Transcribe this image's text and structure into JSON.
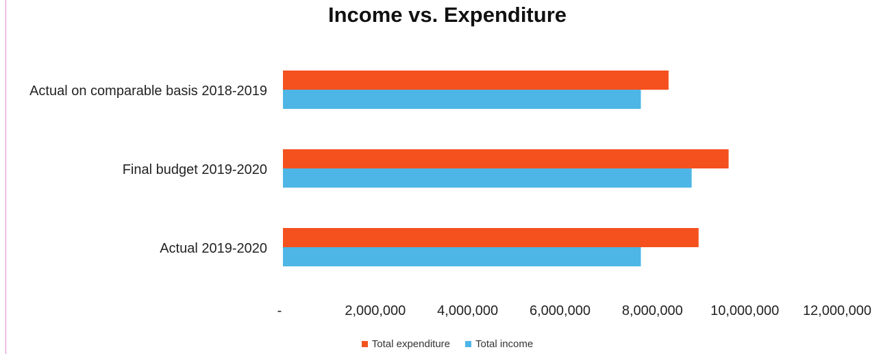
{
  "chart_data": {
    "type": "bar",
    "orientation": "horizontal",
    "title": "Income vs. Expenditure",
    "categories": [
      "Actual on comparable basis 2018-2019",
      "Final budget 2019-2020",
      "Actual 2019-2020"
    ],
    "series": [
      {
        "name": "Total expenditure",
        "color": "#f4511e",
        "values": [
          8350000,
          9650000,
          9000000
        ]
      },
      {
        "name": "Total income",
        "color": "#4db6e6",
        "values": [
          7750000,
          8850000,
          7750000
        ]
      }
    ],
    "xlim": [
      0,
      12000000
    ],
    "x_ticks": [
      {
        "value": 0,
        "label": "-"
      },
      {
        "value": 2000000,
        "label": "2,000,000"
      },
      {
        "value": 4000000,
        "label": "4,000,000"
      },
      {
        "value": 6000000,
        "label": "6,000,000"
      },
      {
        "value": 8000000,
        "label": "8,000,000"
      },
      {
        "value": 10000000,
        "label": "10,000,000"
      },
      {
        "value": 12000000,
        "label": "12,000,000"
      }
    ],
    "legend_position": "bottom",
    "grid": false
  }
}
